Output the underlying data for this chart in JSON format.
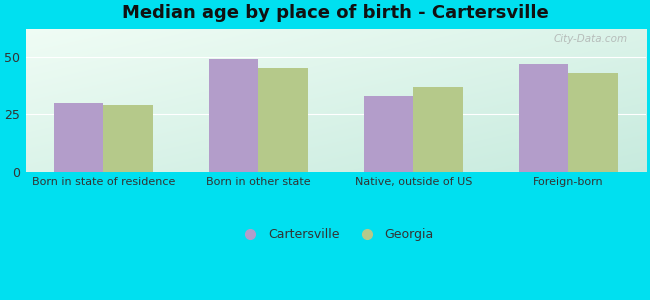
{
  "title": "Median age by place of birth - Cartersville",
  "categories": [
    "Born in state of residence",
    "Born in other state",
    "Native, outside of US",
    "Foreign-born"
  ],
  "cartersville_values": [
    30,
    49,
    33,
    47
  ],
  "georgia_values": [
    29,
    45,
    37,
    43
  ],
  "cartersville_color": "#b39dca",
  "georgia_color": "#b5c98a",
  "bar_width": 0.32,
  "ylim": [
    0,
    62
  ],
  "yticks": [
    0,
    25,
    50
  ],
  "background_outer": "#00e0f0",
  "legend_cartersville": "Cartersville",
  "legend_georgia": "Georgia",
  "title_fontsize": 13,
  "grid_color": "#ccddcc",
  "watermark": "City-Data.com"
}
